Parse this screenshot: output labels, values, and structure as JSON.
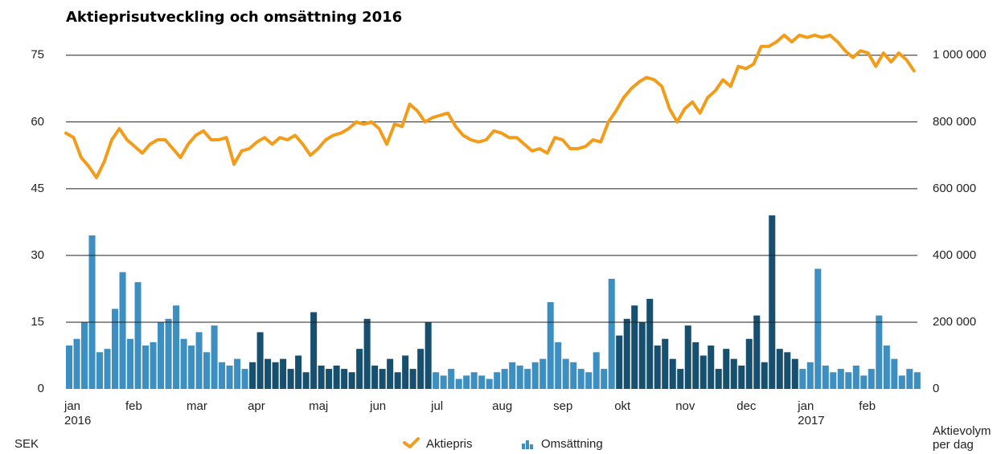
{
  "chart_data": {
    "type": "combo",
    "title": "Aktieprisutveckling och omsättning 2016",
    "ylabel": "SEK",
    "y2label": [
      "Aktievolym",
      "per dag"
    ],
    "x": [
      0,
      0.125,
      0.25,
      0.375,
      0.5,
      0.625,
      0.75,
      0.875,
      1,
      1.125,
      1.25,
      1.375,
      1.5,
      1.625,
      1.75,
      1.875,
      2,
      2.125,
      2.25,
      2.375,
      2.5,
      2.625,
      2.75,
      2.875,
      3,
      3.125,
      3.25,
      3.375,
      3.5,
      3.625,
      3.75,
      3.875,
      4,
      4.125,
      4.25,
      4.375,
      4.5,
      4.625,
      4.75,
      4.875,
      5,
      5.125,
      5.25,
      5.375,
      5.5,
      5.625,
      5.75,
      5.875,
      6,
      6.125,
      6.25,
      6.375,
      6.5,
      6.625,
      6.75,
      6.875,
      7,
      7.125,
      7.25,
      7.375,
      7.5,
      7.625,
      7.75,
      7.875,
      8,
      8.125,
      8.25,
      8.375,
      8.5,
      8.625,
      8.75,
      8.875,
      9,
      9.125,
      9.25,
      9.375,
      9.5,
      9.625,
      9.75,
      9.875,
      10,
      10.125,
      10.25,
      10.375,
      10.5,
      10.625,
      10.75,
      10.875,
      11,
      11.125,
      11.25,
      11.375,
      11.5,
      11.625,
      11.75,
      11.875,
      12,
      12.125,
      12.25,
      12.375,
      12.5,
      12.625,
      12.75,
      12.875,
      13,
      13.125,
      13.25,
      13.375,
      13.5,
      13.625,
      13.75,
      13.875
    ],
    "xlim": [
      0,
      13.93
    ],
    "xticks": [
      {
        "value": 0,
        "label": "jan"
      },
      {
        "value": 1,
        "label": "feb"
      },
      {
        "value": 2,
        "label": "mar"
      },
      {
        "value": 3,
        "label": "apr"
      },
      {
        "value": 4,
        "label": "maj"
      },
      {
        "value": 5,
        "label": "jun"
      },
      {
        "value": 6,
        "label": "jul"
      },
      {
        "value": 7,
        "label": "aug"
      },
      {
        "value": 8,
        "label": "sep"
      },
      {
        "value": 9,
        "label": "okt"
      },
      {
        "value": 10,
        "label": "nov"
      },
      {
        "value": 11,
        "label": "dec"
      },
      {
        "value": 12,
        "label": "jan"
      },
      {
        "value": 13,
        "label": "feb"
      }
    ],
    "year_labels": [
      {
        "value": 0,
        "label": "2016"
      },
      {
        "value": 12,
        "label": "2017"
      }
    ],
    "ylim": [
      0,
      82
    ],
    "yticks": [
      0,
      15,
      30,
      45,
      60,
      75
    ],
    "y2lim": [
      0,
      1093333
    ],
    "y2ticks": [
      {
        "value": 0,
        "label": "0"
      },
      {
        "value": 200000,
        "label": "200 000"
      },
      {
        "value": 400000,
        "label": "400 000"
      },
      {
        "value": 600000,
        "label": "600 000"
      },
      {
        "value": 800000,
        "label": "800 000"
      },
      {
        "value": 1000000,
        "label": "1 000 000"
      }
    ],
    "grid": true,
    "series": [
      {
        "name": "Aktiepris",
        "kind": "line",
        "color": "#f39c1a",
        "values": [
          57.5,
          56.5,
          52,
          50,
          47.5,
          51,
          56,
          58.5,
          56,
          54.5,
          53,
          55,
          56,
          56,
          54,
          52,
          55,
          57,
          58,
          56,
          56,
          56.5,
          50.5,
          53.5,
          54,
          55.5,
          56.5,
          55,
          56.5,
          56,
          57,
          55,
          52.5,
          54,
          56,
          57,
          57.5,
          58.5,
          60,
          59.5,
          60,
          58.5,
          55,
          59.5,
          59,
          64,
          62.5,
          60,
          61,
          61.5,
          62,
          59,
          57,
          56,
          55.5,
          56,
          58,
          57.5,
          56.5,
          56.5,
          55,
          53.5,
          54,
          53,
          56.5,
          56,
          54,
          54,
          54.5,
          56,
          55.5,
          60,
          62.5,
          65.5,
          67.5,
          69,
          70,
          69.5,
          68,
          63,
          60,
          63,
          64.5,
          62,
          65.5,
          67,
          69.5,
          68,
          72.5,
          72,
          73,
          77,
          77,
          78,
          79.5,
          78,
          79.5,
          79,
          79.5,
          79,
          79.5,
          78,
          76,
          74.5,
          76,
          75.5,
          72.5,
          75.5,
          73.5,
          75.5,
          74,
          71.5
        ]
      },
      {
        "name": "Omsättning",
        "kind": "bar",
        "axis": "y2",
        "color": "#3c8fc0",
        "alt_color": "#17506f",
        "alt_periods": [
          [
            3,
            6
          ],
          [
            9,
            12
          ]
        ],
        "values": [
          130000,
          150000,
          200000,
          460000,
          110000,
          120000,
          240000,
          350000,
          150000,
          320000,
          130000,
          140000,
          200000,
          210000,
          250000,
          150000,
          130000,
          170000,
          110000,
          190000,
          80000,
          70000,
          90000,
          60000,
          80000,
          170000,
          90000,
          80000,
          90000,
          60000,
          100000,
          50000,
          230000,
          70000,
          60000,
          70000,
          60000,
          50000,
          120000,
          210000,
          70000,
          60000,
          90000,
          50000,
          100000,
          60000,
          120000,
          200000,
          50000,
          40000,
          60000,
          30000,
          40000,
          50000,
          40000,
          30000,
          50000,
          60000,
          80000,
          70000,
          60000,
          80000,
          90000,
          260000,
          140000,
          90000,
          80000,
          60000,
          50000,
          110000,
          60000,
          330000,
          160000,
          210000,
          250000,
          200000,
          270000,
          130000,
          150000,
          90000,
          60000,
          190000,
          140000,
          100000,
          130000,
          60000,
          120000,
          90000,
          70000,
          150000,
          220000,
          80000,
          520000,
          120000,
          110000,
          90000,
          60000,
          80000,
          360000,
          70000,
          50000,
          60000,
          50000,
          70000,
          40000,
          60000,
          220000,
          130000,
          90000,
          40000,
          60000,
          50000
        ]
      }
    ]
  }
}
